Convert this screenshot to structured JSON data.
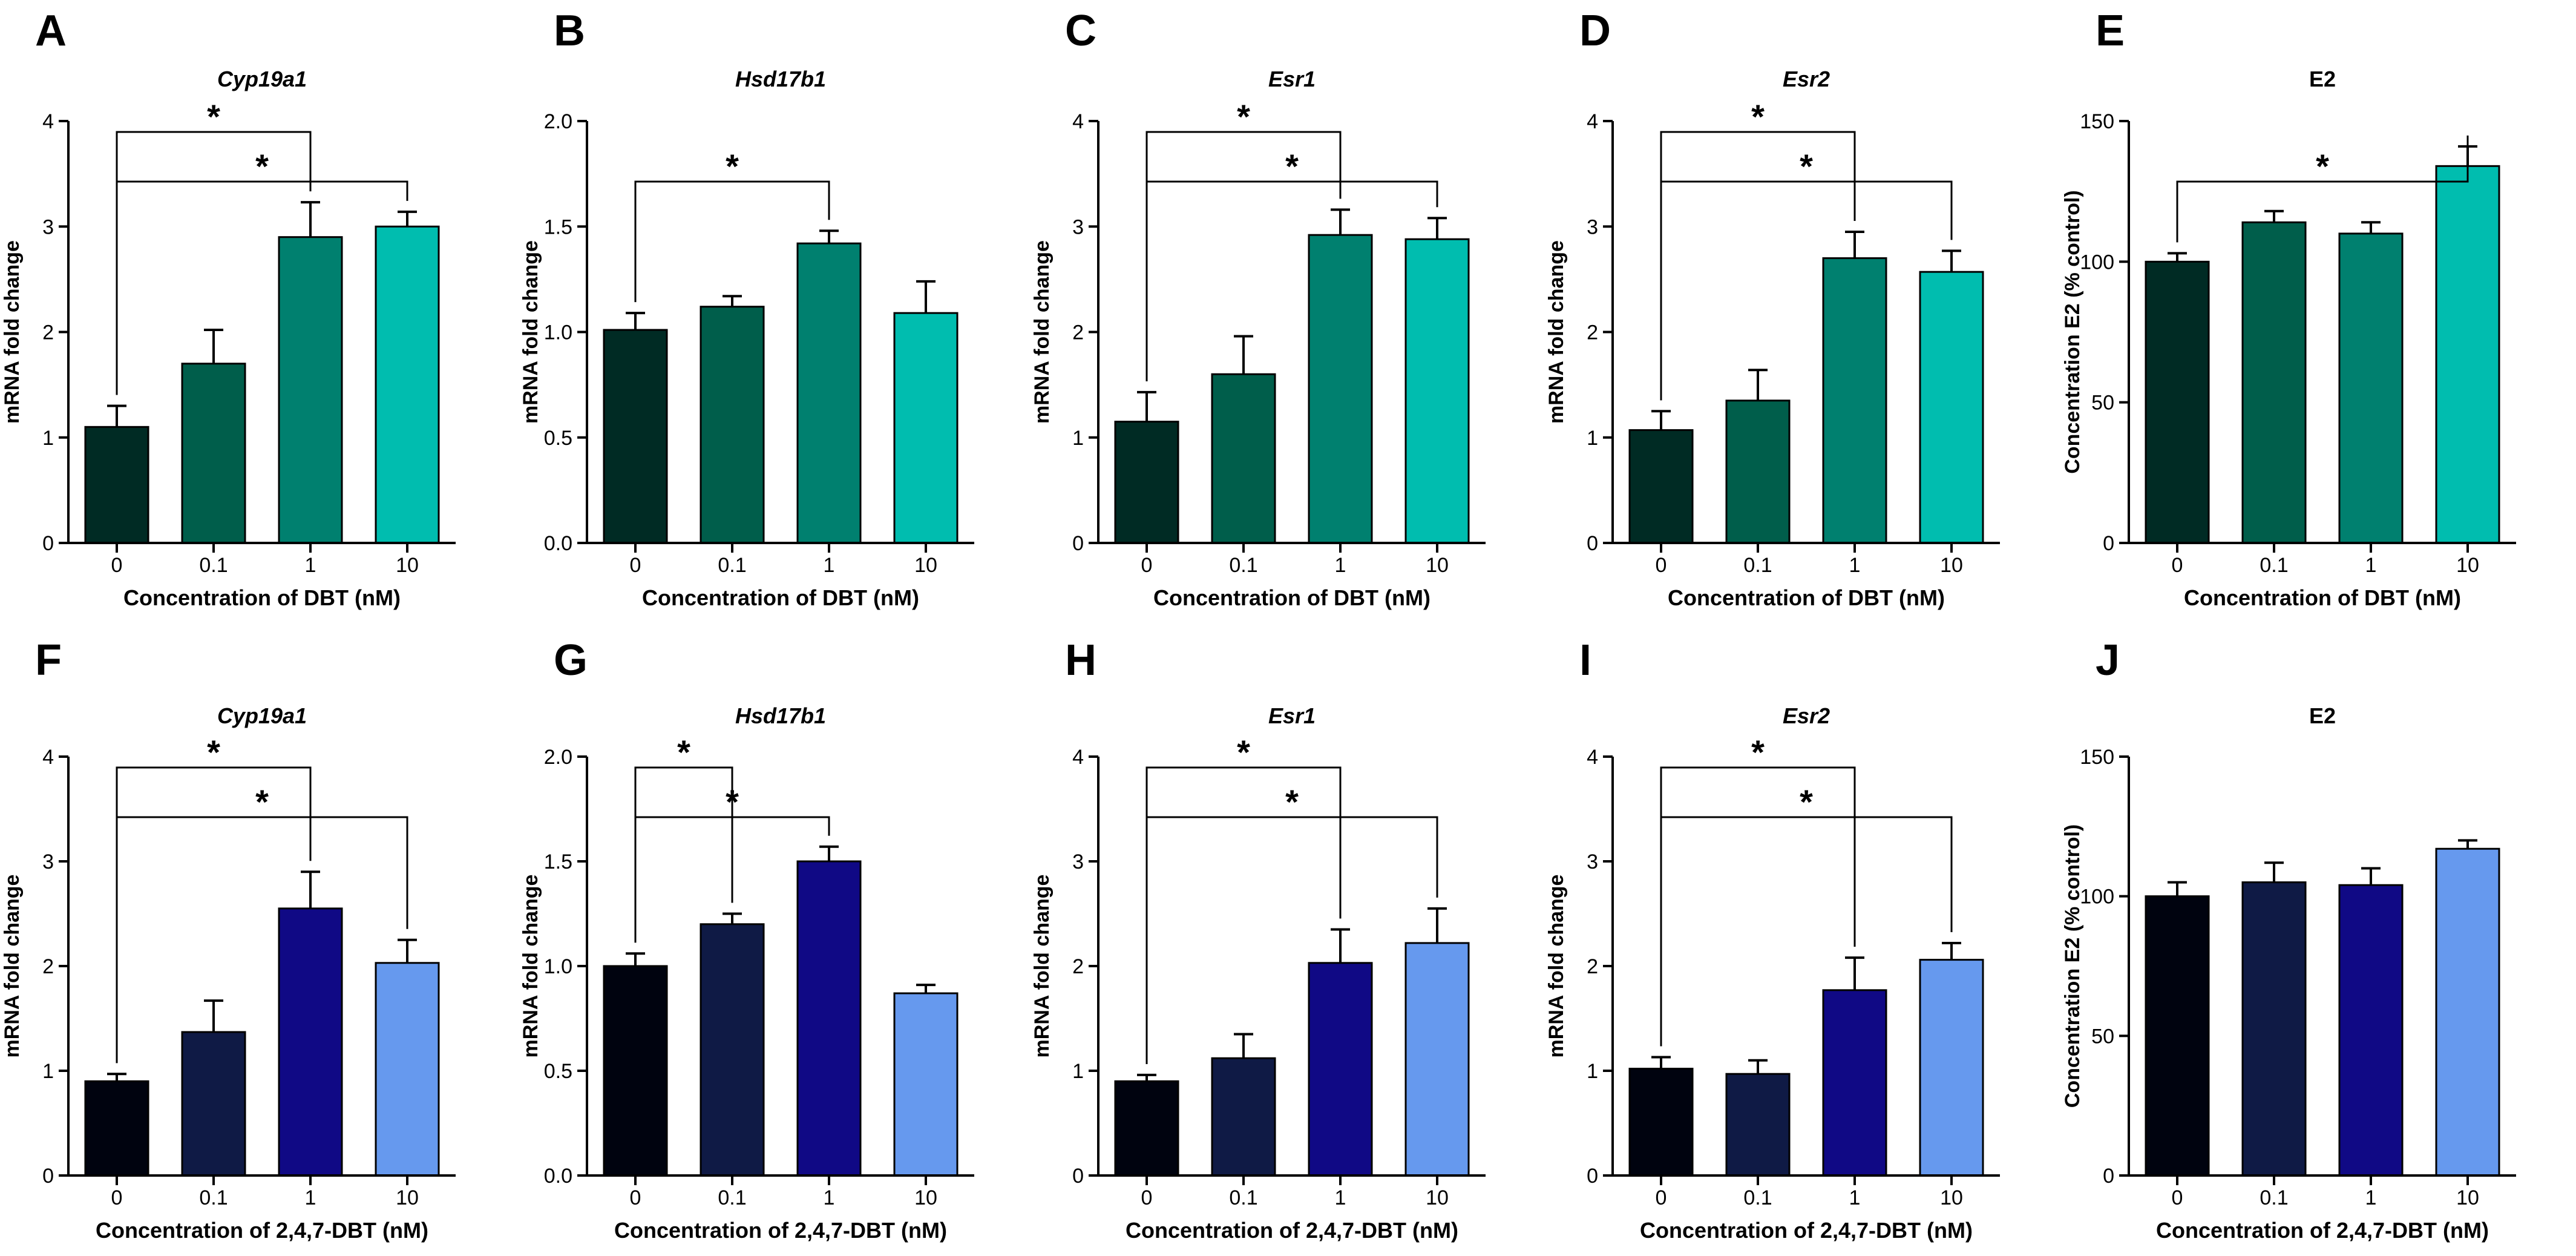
{
  "chart_data": [
    {
      "panel": "A",
      "type": "bar",
      "title": "Cyp19a1",
      "title_italic": true,
      "ylabel": "mRNA fold change",
      "xlabel": "Concentration of DBT (nM)",
      "categories": [
        "0",
        "0.1",
        "1",
        "10"
      ],
      "values": [
        1.1,
        1.7,
        2.9,
        3.0
      ],
      "errors": [
        0.2,
        0.32,
        0.33,
        0.14
      ],
      "colors": [
        "#002B24",
        "#005E4B",
        "#00806F",
        "#00BDAF"
      ],
      "ylim": [
        0,
        4
      ],
      "yticks": [
        0,
        1,
        2,
        3,
        4
      ],
      "yticklabels": [
        "0",
        "1",
        "2",
        "3",
        "4"
      ],
      "significance": [
        {
          "from": 0,
          "to": 2,
          "label": "*"
        },
        {
          "from": 0,
          "to": 3,
          "label": "*"
        }
      ]
    },
    {
      "panel": "B",
      "type": "bar",
      "title": "Hsd17b1",
      "title_italic": true,
      "ylabel": "mRNA fold change",
      "xlabel": "Concentration of DBT (nM)",
      "categories": [
        "0",
        "0.1",
        "1",
        "10"
      ],
      "values": [
        1.01,
        1.12,
        1.42,
        1.09
      ],
      "errors": [
        0.08,
        0.05,
        0.06,
        0.15
      ],
      "colors": [
        "#002B24",
        "#005E4B",
        "#00806F",
        "#00BDAF"
      ],
      "ylim": [
        0,
        2
      ],
      "yticks": [
        0,
        0.5,
        1,
        1.5,
        2
      ],
      "yticklabels": [
        "0.0",
        "0.5",
        "1.0",
        "1.5",
        "2.0"
      ],
      "significance": [
        {
          "from": 0,
          "to": 2,
          "label": "*"
        }
      ]
    },
    {
      "panel": "C",
      "type": "bar",
      "title": "Esr1",
      "title_italic": true,
      "ylabel": "mRNA fold change",
      "xlabel": "Concentration of DBT (nM)",
      "categories": [
        "0",
        "0.1",
        "1",
        "10"
      ],
      "values": [
        1.15,
        1.6,
        2.92,
        2.88
      ],
      "errors": [
        0.28,
        0.36,
        0.24,
        0.2
      ],
      "colors": [
        "#002B24",
        "#005E4B",
        "#00806F",
        "#00BDAF"
      ],
      "ylim": [
        0,
        4
      ],
      "yticks": [
        0,
        1,
        2,
        3,
        4
      ],
      "yticklabels": [
        "0",
        "1",
        "2",
        "3",
        "4"
      ],
      "significance": [
        {
          "from": 0,
          "to": 2,
          "label": "*"
        },
        {
          "from": 0,
          "to": 3,
          "label": "*"
        }
      ]
    },
    {
      "panel": "D",
      "type": "bar",
      "title": "Esr2",
      "title_italic": true,
      "ylabel": "mRNA fold change",
      "xlabel": "Concentration of DBT (nM)",
      "categories": [
        "0",
        "0.1",
        "1",
        "10"
      ],
      "values": [
        1.07,
        1.35,
        2.7,
        2.57
      ],
      "errors": [
        0.18,
        0.29,
        0.25,
        0.2
      ],
      "colors": [
        "#002B24",
        "#005E4B",
        "#00806F",
        "#00BDAF"
      ],
      "ylim": [
        0,
        4
      ],
      "yticks": [
        0,
        1,
        2,
        3,
        4
      ],
      "yticklabels": [
        "0",
        "1",
        "2",
        "3",
        "4"
      ],
      "significance": [
        {
          "from": 0,
          "to": 2,
          "label": "*"
        },
        {
          "from": 0,
          "to": 3,
          "label": "*"
        }
      ]
    },
    {
      "panel": "E",
      "type": "bar",
      "title": "E2",
      "title_italic": false,
      "ylabel": "Concentration E2 (% control)",
      "xlabel": "Concentration of DBT (nM)",
      "categories": [
        "0",
        "0.1",
        "1",
        "10"
      ],
      "values": [
        100,
        114,
        110,
        134
      ],
      "errors": [
        3,
        4,
        4,
        7
      ],
      "colors": [
        "#002B24",
        "#005E4B",
        "#00806F",
        "#00BDAF"
      ],
      "ylim": [
        0,
        150
      ],
      "yticks": [
        0,
        50,
        100,
        150
      ],
      "yticklabels": [
        "0",
        "50",
        "100",
        "150"
      ],
      "significance": [
        {
          "from": 0,
          "to": 3,
          "label": "*"
        }
      ]
    },
    {
      "panel": "F",
      "type": "bar",
      "title": "Cyp19a1",
      "title_italic": true,
      "ylabel": "mRNA fold change",
      "xlabel": "Concentration of 2,4,7-DBT (nM)",
      "categories": [
        "0",
        "0.1",
        "1",
        "10"
      ],
      "values": [
        0.9,
        1.37,
        2.55,
        2.03
      ],
      "errors": [
        0.07,
        0.3,
        0.35,
        0.22
      ],
      "colors": [
        "#00030F",
        "#0F1A45",
        "#100985",
        "#6699EE"
      ],
      "ylim": [
        0,
        4
      ],
      "yticks": [
        0,
        1,
        2,
        3,
        4
      ],
      "yticklabels": [
        "0",
        "1",
        "2",
        "3",
        "4"
      ],
      "significance": [
        {
          "from": 0,
          "to": 2,
          "label": "*"
        },
        {
          "from": 0,
          "to": 3,
          "label": "*"
        }
      ]
    },
    {
      "panel": "G",
      "type": "bar",
      "title": "Hsd17b1",
      "title_italic": true,
      "ylabel": "mRNA fold change",
      "xlabel": "Concentration of 2,4,7-DBT (nM)",
      "categories": [
        "0",
        "0.1",
        "1",
        "10"
      ],
      "values": [
        1.0,
        1.2,
        1.5,
        0.87
      ],
      "errors": [
        0.06,
        0.05,
        0.07,
        0.04
      ],
      "colors": [
        "#00030F",
        "#0F1A45",
        "#100985",
        "#6699EE"
      ],
      "ylim": [
        0,
        2
      ],
      "yticks": [
        0,
        0.5,
        1,
        1.5,
        2
      ],
      "yticklabels": [
        "0.0",
        "0.5",
        "1.0",
        "1.5",
        "2.0"
      ],
      "significance": [
        {
          "from": 0,
          "to": 1,
          "label": "*"
        },
        {
          "from": 0,
          "to": 2,
          "label": "*"
        }
      ]
    },
    {
      "panel": "H",
      "type": "bar",
      "title": "Esr1",
      "title_italic": true,
      "ylabel": "mRNA fold change",
      "xlabel": "Concentration of 2,4,7-DBT (nM)",
      "categories": [
        "0",
        "0.1",
        "1",
        "10"
      ],
      "values": [
        0.9,
        1.12,
        2.03,
        2.22
      ],
      "errors": [
        0.06,
        0.23,
        0.32,
        0.33
      ],
      "colors": [
        "#00030F",
        "#0F1A45",
        "#100985",
        "#6699EE"
      ],
      "ylim": [
        0,
        4
      ],
      "yticks": [
        0,
        1,
        2,
        3,
        4
      ],
      "yticklabels": [
        "0",
        "1",
        "2",
        "3",
        "4"
      ],
      "significance": [
        {
          "from": 0,
          "to": 2,
          "label": "*"
        },
        {
          "from": 0,
          "to": 3,
          "label": "*"
        }
      ]
    },
    {
      "panel": "I",
      "type": "bar",
      "title": "Esr2",
      "title_italic": true,
      "ylabel": "mRNA fold change",
      "xlabel": "Concentration of 2,4,7-DBT (nM)",
      "categories": [
        "0",
        "0.1",
        "1",
        "10"
      ],
      "values": [
        1.02,
        0.97,
        1.77,
        2.06
      ],
      "errors": [
        0.11,
        0.13,
        0.31,
        0.16
      ],
      "colors": [
        "#00030F",
        "#0F1A45",
        "#100985",
        "#6699EE"
      ],
      "ylim": [
        0,
        4
      ],
      "yticks": [
        0,
        1,
        2,
        3,
        4
      ],
      "yticklabels": [
        "0",
        "1",
        "2",
        "3",
        "4"
      ],
      "significance": [
        {
          "from": 0,
          "to": 2,
          "label": "*"
        },
        {
          "from": 0,
          "to": 3,
          "label": "*"
        }
      ]
    },
    {
      "panel": "J",
      "type": "bar",
      "title": "E2",
      "title_italic": false,
      "ylabel": "Concentration E2 (% control)",
      "xlabel": "Concentration of 2,4,7-DBT (nM)",
      "categories": [
        "0",
        "0.1",
        "1",
        "10"
      ],
      "values": [
        100,
        105,
        104,
        117
      ],
      "errors": [
        5,
        7,
        6,
        3
      ],
      "colors": [
        "#00030F",
        "#0F1A45",
        "#100985",
        "#6699EE"
      ],
      "ylim": [
        0,
        150
      ],
      "yticks": [
        0,
        50,
        100,
        150
      ],
      "yticklabels": [
        "0",
        "50",
        "100",
        "150"
      ],
      "significance": []
    }
  ]
}
